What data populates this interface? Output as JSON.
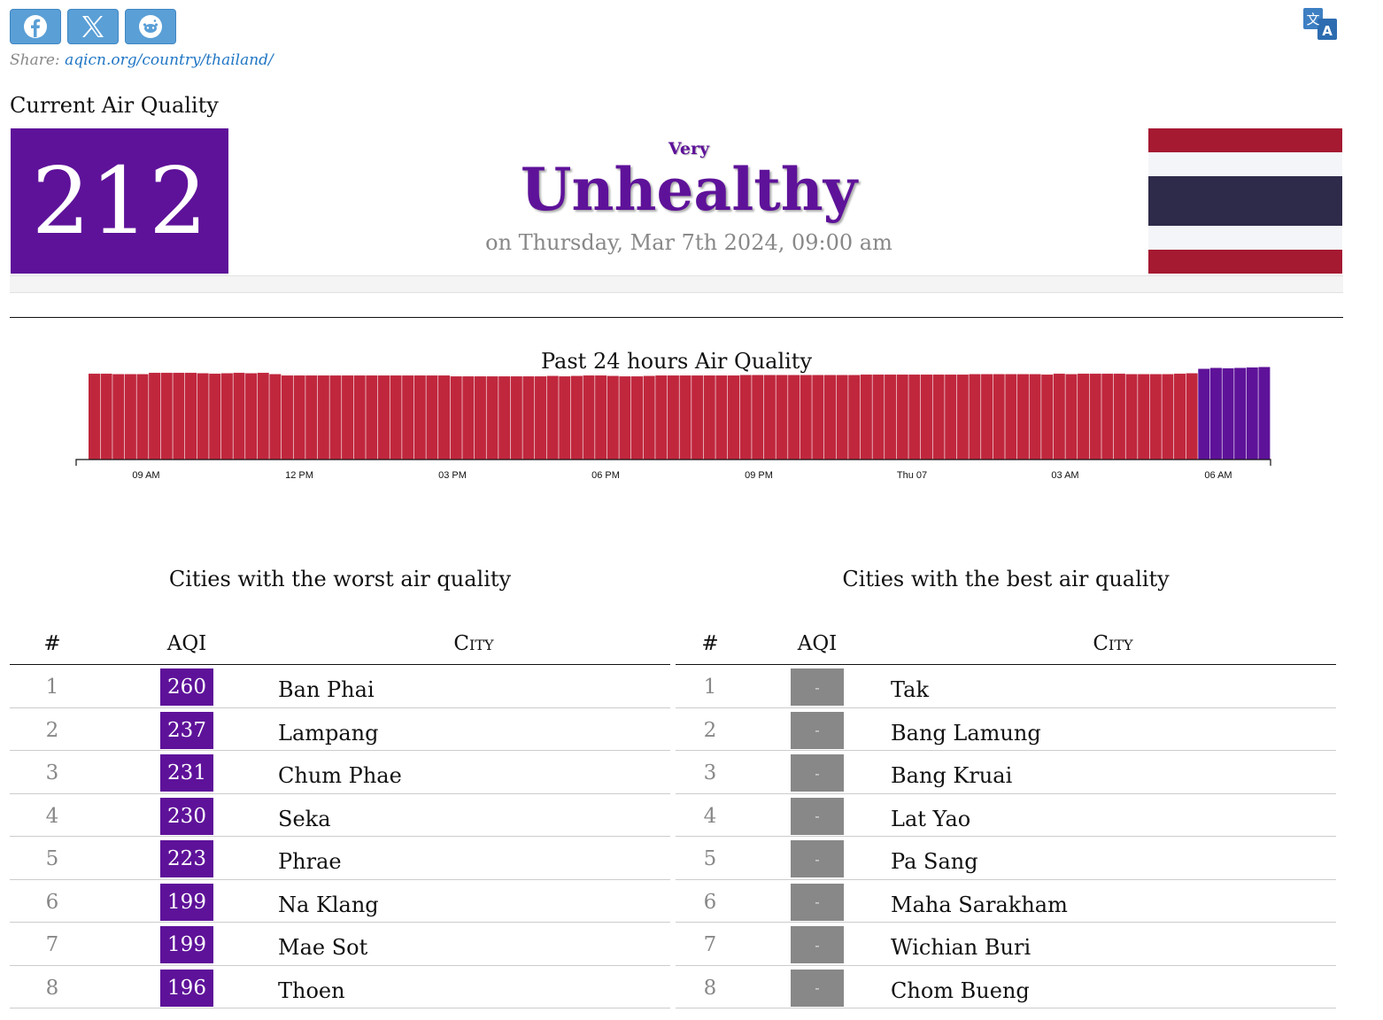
{
  "share": {
    "buttons": [
      {
        "icon": "facebook-icon"
      },
      {
        "icon": "x-twitter-icon"
      },
      {
        "icon": "reddit-icon"
      }
    ],
    "label": "Share:",
    "url": "aqicn.org/country/thailand/"
  },
  "translate_icon": "translate-icon",
  "current": {
    "title": "Current Air Quality",
    "aqi": "212",
    "status_prefix": "Very",
    "status": "Unhealthy",
    "date": "on Thursday, Mar 7th 2024, 09:00 am",
    "aqi_color": "#5e1299",
    "flag_colors": [
      "#a51931",
      "#f4f5f8",
      "#2d2a4a",
      "#f4f5f8",
      "#a51931"
    ]
  },
  "chart": {
    "title": "Past 24 hours Air Quality"
  },
  "chart_data": {
    "type": "bar",
    "title": "Past 24 hours Air Quality",
    "x_tick_labels": [
      "09 AM",
      "12 PM",
      "03 PM",
      "06 PM",
      "09 PM",
      "Thu 07",
      "03 AM",
      "06 AM"
    ],
    "series": [
      {
        "values": [
          193,
          193,
          192,
          192,
          192,
          195,
          195,
          195,
          195,
          194,
          193,
          194,
          195,
          194,
          195,
          192,
          189,
          189,
          189,
          189,
          189,
          189,
          189,
          189,
          189,
          189,
          189,
          189,
          189,
          189,
          187,
          187,
          187,
          187,
          187,
          187,
          187,
          187,
          188,
          187,
          188,
          189,
          189,
          188,
          187,
          187,
          188,
          189,
          189,
          189,
          189,
          189,
          189,
          189,
          190,
          190,
          190,
          190,
          190,
          190,
          190,
          190,
          190,
          190,
          191,
          191,
          191,
          191,
          191,
          191,
          191,
          191,
          191,
          192,
          192,
          192,
          192,
          192,
          192,
          191,
          193,
          192,
          193,
          193,
          193,
          193,
          192,
          192,
          192,
          192,
          193,
          194,
          204,
          206,
          205,
          206,
          207,
          208
        ]
      }
    ],
    "colors": {
      "unhealthy": "#c0273d",
      "very_unhealthy": "#5e1299"
    },
    "ylim": [
      0,
      215
    ]
  },
  "worst": {
    "title": "Cities with the worst air quality",
    "headers": {
      "rank": "#",
      "aqi": "AQI",
      "city": "City"
    },
    "rows": [
      {
        "rank": "1",
        "aqi": "260",
        "city": "Ban Phai"
      },
      {
        "rank": "2",
        "aqi": "237",
        "city": "Lampang"
      },
      {
        "rank": "3",
        "aqi": "231",
        "city": "Chum Phae"
      },
      {
        "rank": "4",
        "aqi": "230",
        "city": "Seka"
      },
      {
        "rank": "5",
        "aqi": "223",
        "city": "Phrae"
      },
      {
        "rank": "6",
        "aqi": "199",
        "city": "Na Klang"
      },
      {
        "rank": "7",
        "aqi": "199",
        "city": "Mae Sot"
      },
      {
        "rank": "8",
        "aqi": "196",
        "city": "Thoen"
      }
    ]
  },
  "best": {
    "title": "Cities with the best air quality",
    "headers": {
      "rank": "#",
      "aqi": "AQI",
      "city": "City"
    },
    "rows": [
      {
        "rank": "1",
        "aqi": "-",
        "city": "Tak"
      },
      {
        "rank": "2",
        "aqi": "-",
        "city": "Bang Lamung"
      },
      {
        "rank": "3",
        "aqi": "-",
        "city": "Bang Kruai"
      },
      {
        "rank": "4",
        "aqi": "-",
        "city": "Lat Yao"
      },
      {
        "rank": "5",
        "aqi": "-",
        "city": "Pa Sang"
      },
      {
        "rank": "6",
        "aqi": "-",
        "city": "Maha Sarakham"
      },
      {
        "rank": "7",
        "aqi": "-",
        "city": "Wichian Buri"
      },
      {
        "rank": "8",
        "aqi": "-",
        "city": "Chom Bueng"
      }
    ]
  }
}
